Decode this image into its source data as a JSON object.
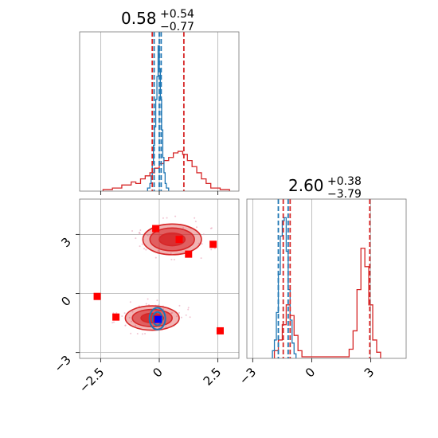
{
  "chart_data": {
    "type": "corner",
    "colors": {
      "red": "#d62728",
      "blue": "#1f77b4",
      "red_fill": "#f4a5a5",
      "scatter_pink": "#e8a0b8",
      "marker": "#ff0000"
    },
    "grid": true,
    "panels": [
      {
        "id": "hist_p1",
        "type": "histogram",
        "title": {
          "value": "0.58",
          "plus": "+0.54",
          "minus": "−0.77"
        },
        "xlim": [
          -3.4,
          3.4
        ],
        "xticks": [
          -2.5,
          0.0,
          2.5
        ],
        "red_hist": {
          "edges": [
            -2.4,
            -2.0,
            -1.6,
            -1.2,
            -1.0,
            -0.8,
            -0.6,
            -0.4,
            -0.2,
            0.0,
            0.2,
            0.4,
            0.6,
            0.8,
            1.0,
            1.2,
            1.4,
            1.6,
            1.8,
            2.0,
            2.2,
            2.6,
            3.0
          ],
          "counts": [
            0.01,
            0.02,
            0.04,
            0.06,
            0.05,
            0.08,
            0.1,
            0.12,
            0.15,
            0.18,
            0.2,
            0.22,
            0.25,
            0.26,
            0.24,
            0.2,
            0.16,
            0.12,
            0.08,
            0.05,
            0.02,
            0.01
          ]
        },
        "blue_hist": {
          "edges": [
            -0.5,
            -0.4,
            -0.35,
            -0.3,
            -0.25,
            -0.2,
            -0.15,
            -0.1,
            -0.05,
            0.0,
            0.05,
            0.1,
            0.15,
            0.2,
            0.25,
            0.3,
            0.4
          ],
          "counts": [
            0.02,
            0.05,
            0.1,
            0.18,
            0.3,
            0.42,
            0.6,
            0.75,
            0.95,
            0.8,
            0.6,
            0.4,
            0.22,
            0.12,
            0.05,
            0.02
          ]
        },
        "red_lines": [
          -0.3,
          1.05
        ],
        "blue_lines": [
          -0.22,
          0.0,
          0.08
        ]
      },
      {
        "id": "scatter_2d",
        "type": "contour",
        "xlim": [
          -3.4,
          3.4
        ],
        "ylim": [
          -3.3,
          4.8
        ],
        "xticks": [
          -2.5,
          0.0,
          2.5
        ],
        "yticks": [
          -3,
          0,
          3
        ],
        "red_blobs": [
          {
            "cx": 0.55,
            "cy": 2.75,
            "rx": [
              1.25,
              0.95,
              0.55
            ],
            "ry": [
              0.78,
              0.58,
              0.32
            ]
          },
          {
            "cx": -0.3,
            "cy": -1.25,
            "rx": [
              1.15,
              0.85,
              0.48
            ],
            "ry": [
              0.62,
              0.44,
              0.24
            ]
          }
        ],
        "blue_blob": {
          "cx": -0.08,
          "cy": -1.28,
          "rx": [
            0.34,
            0.2,
            0.08
          ],
          "ry": [
            0.55,
            0.34,
            0.12
          ]
        },
        "markers": [
          {
            "x": -0.15,
            "y": 3.3
          },
          {
            "x": 0.85,
            "y": 2.75
          },
          {
            "x": 1.25,
            "y": 2.0
          },
          {
            "x": 2.3,
            "y": 2.5
          },
          {
            "x": -2.65,
            "y": -0.15
          },
          {
            "x": -1.85,
            "y": -1.2
          },
          {
            "x": -0.1,
            "y": -1.3
          },
          {
            "x": 2.6,
            "y": -1.9
          }
        ],
        "blue_marker": {
          "x": -0.05,
          "y": -1.32
        }
      },
      {
        "id": "hist_p2",
        "type": "histogram",
        "title": {
          "value": "2.60",
          "plus": "+0.38",
          "minus": "−3.79"
        },
        "xlim": [
          -3.3,
          4.8
        ],
        "xticks": [
          -3,
          0,
          3
        ],
        "red_hist": {
          "edges": [
            -1.9,
            -1.7,
            -1.5,
            -1.3,
            -1.1,
            -0.9,
            -0.7,
            -0.5,
            1.9,
            2.1,
            2.3,
            2.5,
            2.7,
            2.9,
            3.1,
            3.3,
            3.5
          ],
          "counts": [
            0.05,
            0.12,
            0.22,
            0.35,
            0.28,
            0.15,
            0.05,
            0.01,
            0.06,
            0.18,
            0.45,
            0.72,
            0.6,
            0.35,
            0.12,
            0.04
          ]
        },
        "blue_hist": {
          "edges": [
            -2.0,
            -1.9,
            -1.8,
            -1.7,
            -1.6,
            -1.5,
            -1.4,
            -1.3,
            -1.2,
            -1.1,
            -1.0,
            -0.9,
            -0.8
          ],
          "counts": [
            0.05,
            0.12,
            0.3,
            0.55,
            0.8,
            0.9,
            0.92,
            0.7,
            0.45,
            0.25,
            0.1,
            0.03
          ]
        },
        "red_lines": [
          -1.45,
          -1.1,
          2.95
        ],
        "blue_lines": [
          -1.7,
          -1.2
        ]
      }
    ]
  }
}
